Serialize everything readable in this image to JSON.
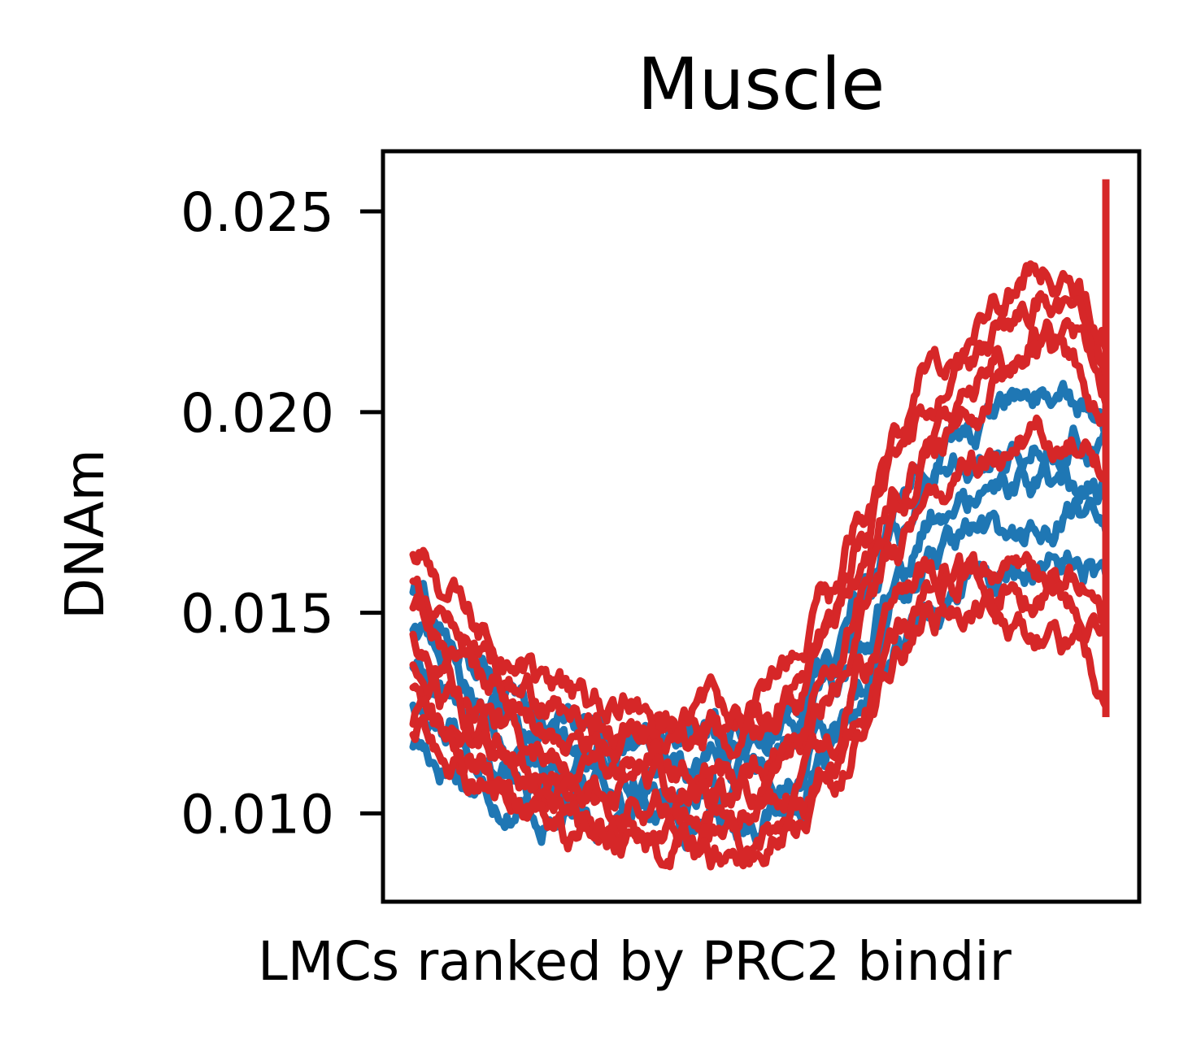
{
  "chart_data": {
    "type": "line",
    "title": "Muscle",
    "xlabel": "LMCs ranked by PRC2 bindir",
    "ylabel": "DNAm",
    "ylim": [
      0.0078,
      0.0265
    ],
    "xlim": [
      0,
      100
    ],
    "yticks": [
      0.01,
      0.015,
      0.02,
      0.025
    ],
    "ytick_labels": [
      "0.010",
      "0.015",
      "0.020",
      "0.025"
    ],
    "xticks": [],
    "grid": false,
    "legend": "none",
    "colors": {
      "blue": "#1f77b4",
      "red": "#d62728"
    },
    "x": [
      0,
      5,
      10,
      15,
      20,
      25,
      30,
      35,
      40,
      45,
      50,
      55,
      60,
      65,
      70,
      75,
      80,
      85,
      90,
      95,
      100
    ],
    "series": [
      {
        "color": "#1f77b4",
        "values": [
          0.0118,
          0.0112,
          0.0106,
          0.0102,
          0.0098,
          0.0098,
          0.01,
          0.01,
          0.0099,
          0.0098,
          0.0099,
          0.0103,
          0.0112,
          0.0125,
          0.014,
          0.0152,
          0.0157,
          0.0158,
          0.016,
          0.0162,
          0.016
        ]
      },
      {
        "color": "#1f77b4",
        "values": [
          0.0128,
          0.0121,
          0.0115,
          0.011,
          0.0106,
          0.0105,
          0.0106,
          0.0106,
          0.0105,
          0.0104,
          0.0106,
          0.0111,
          0.012,
          0.0135,
          0.0152,
          0.0163,
          0.0167,
          0.0169,
          0.0171,
          0.0173,
          0.0171
        ]
      },
      {
        "color": "#1f77b4",
        "values": [
          0.0137,
          0.0129,
          0.0122,
          0.0116,
          0.0112,
          0.0111,
          0.0112,
          0.0112,
          0.0111,
          0.011,
          0.0112,
          0.0117,
          0.0128,
          0.0144,
          0.0162,
          0.0173,
          0.0177,
          0.018,
          0.0182,
          0.0183,
          0.018
        ]
      },
      {
        "color": "#1f77b4",
        "values": [
          0.0146,
          0.0137,
          0.0129,
          0.0122,
          0.0118,
          0.0116,
          0.0117,
          0.0117,
          0.0116,
          0.0115,
          0.0117,
          0.0123,
          0.0134,
          0.0152,
          0.017,
          0.0182,
          0.0187,
          0.0191,
          0.0193,
          0.0194,
          0.019
        ]
      },
      {
        "color": "#1f77b4",
        "values": [
          0.0155,
          0.0145,
          0.0136,
          0.0128,
          0.0123,
          0.0121,
          0.0122,
          0.0122,
          0.0121,
          0.012,
          0.0122,
          0.0128,
          0.014,
          0.0159,
          0.0177,
          0.019,
          0.0196,
          0.0201,
          0.0203,
          0.0203,
          0.0198
        ]
      },
      {
        "color": "#d62728",
        "values": [
          0.0164,
          0.0155,
          0.0145,
          0.0136,
          0.013,
          0.0127,
          0.0127,
          0.0127,
          0.0126,
          0.0125,
          0.0128,
          0.0137,
          0.0153,
          0.0176,
          0.0196,
          0.021,
          0.0218,
          0.0228,
          0.0236,
          0.0232,
          0.0218
        ]
      },
      {
        "color": "#d62728",
        "values": [
          0.0157,
          0.0148,
          0.0139,
          0.0131,
          0.0125,
          0.0122,
          0.0122,
          0.0122,
          0.0121,
          0.012,
          0.0123,
          0.0131,
          0.0147,
          0.0169,
          0.0189,
          0.0203,
          0.0211,
          0.022,
          0.0229,
          0.0226,
          0.0212
        ]
      },
      {
        "color": "#d62728",
        "values": [
          0.015,
          0.0141,
          0.0133,
          0.0125,
          0.012,
          0.0117,
          0.0117,
          0.0117,
          0.0116,
          0.0115,
          0.0118,
          0.0126,
          0.0141,
          0.0163,
          0.0183,
          0.0197,
          0.0205,
          0.0213,
          0.0221,
          0.022,
          0.0206
        ]
      },
      {
        "color": "#d62728",
        "values": [
          0.0143,
          0.0134,
          0.0126,
          0.0119,
          0.0114,
          0.0112,
          0.0112,
          0.0112,
          0.0111,
          0.011,
          0.0113,
          0.012,
          0.0135,
          0.0157,
          0.0177,
          0.0191,
          0.0199,
          0.0206,
          0.0214,
          0.0213,
          0.02
        ]
      },
      {
        "color": "#d62728",
        "values": [
          0.0135,
          0.0127,
          0.0119,
          0.0113,
          0.0108,
          0.0106,
          0.0106,
          0.0106,
          0.0105,
          0.0104,
          0.0107,
          0.0114,
          0.0128,
          0.0149,
          0.0168,
          0.018,
          0.0186,
          0.019,
          0.0194,
          0.0193,
          0.0185
        ]
      },
      {
        "color": "#d62728",
        "values": [
          0.0129,
          0.0121,
          0.0114,
          0.0108,
          0.0104,
          0.0102,
          0.0102,
          0.0101,
          0.01,
          0.0099,
          0.0101,
          0.0107,
          0.0119,
          0.0137,
          0.0153,
          0.016,
          0.016,
          0.0161,
          0.0159,
          0.0157,
          0.0148
        ]
      },
      {
        "color": "#d62728",
        "values": [
          0.0125,
          0.0117,
          0.011,
          0.0104,
          0.0099,
          0.0096,
          0.0095,
          0.0094,
          0.0093,
          0.0093,
          0.0095,
          0.0101,
          0.0112,
          0.0128,
          0.0145,
          0.0156,
          0.0158,
          0.0157,
          0.0154,
          0.0152,
          0.0143
        ]
      },
      {
        "color": "#d62728",
        "values": [
          0.0122,
          0.0114,
          0.0107,
          0.0101,
          0.0096,
          0.0093,
          0.0092,
          0.0091,
          0.009,
          0.009,
          0.0092,
          0.0098,
          0.0108,
          0.0123,
          0.0139,
          0.015,
          0.0151,
          0.0147,
          0.0145,
          0.0143,
          0.0134
        ]
      }
    ]
  }
}
